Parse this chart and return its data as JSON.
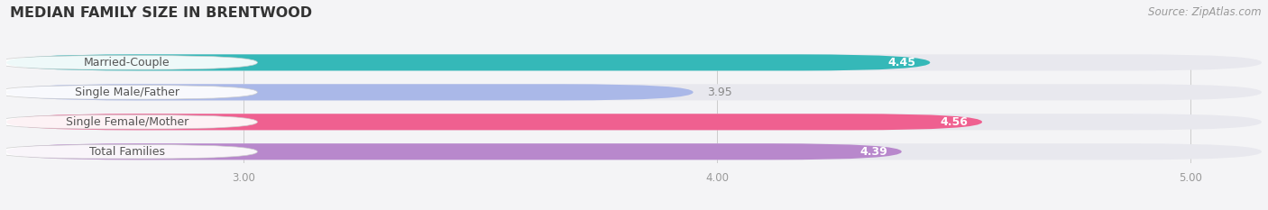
{
  "title": "MEDIAN FAMILY SIZE IN BRENTWOOD",
  "source": "Source: ZipAtlas.com",
  "categories": [
    "Married-Couple",
    "Single Male/Father",
    "Single Female/Mother",
    "Total Families"
  ],
  "values": [
    4.45,
    3.95,
    4.56,
    4.39
  ],
  "bar_colors": [
    "#35b8b8",
    "#aab8e8",
    "#ef6090",
    "#b888cc"
  ],
  "bar_bg_color": "#e8e8ee",
  "value_label_inside": [
    true,
    false,
    true,
    true
  ],
  "xlim_left": 2.5,
  "xlim_right": 5.15,
  "xticks": [
    3.0,
    4.0,
    5.0
  ],
  "xtick_labels": [
    "3.00",
    "4.00",
    "5.00"
  ],
  "background_color": "#f4f4f6",
  "bar_height": 0.55,
  "title_fontsize": 11.5,
  "label_fontsize": 9,
  "value_fontsize": 9,
  "tick_fontsize": 8.5,
  "source_fontsize": 8.5,
  "value_color_inside": "#ffffff",
  "value_color_outside": "#888888",
  "label_text_color": "#555555"
}
